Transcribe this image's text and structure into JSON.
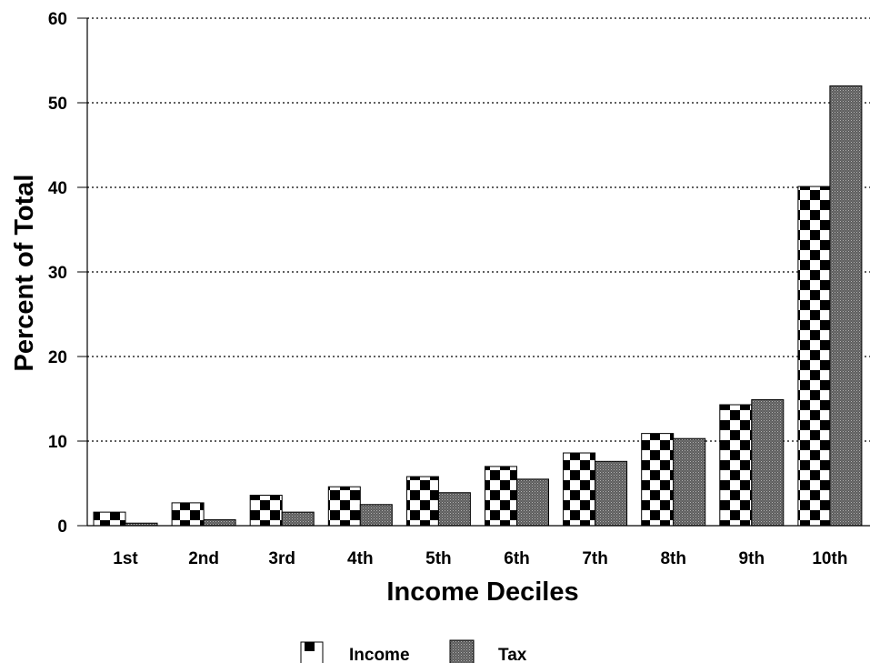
{
  "chart_data": {
    "type": "bar",
    "title": "",
    "xlabel": "Income Deciles",
    "ylabel": "Percent of Total",
    "categories": [
      "1st",
      "2nd",
      "3rd",
      "4th",
      "5th",
      "6th",
      "7th",
      "8th",
      "9th",
      "10th"
    ],
    "series": [
      {
        "name": "Income",
        "values": [
          1.6,
          2.7,
          3.6,
          4.6,
          5.8,
          7.0,
          8.6,
          10.9,
          14.3,
          40.1
        ],
        "pattern": "checkerboard"
      },
      {
        "name": "Tax",
        "values": [
          0.3,
          0.7,
          1.6,
          2.5,
          3.9,
          5.5,
          7.6,
          10.3,
          14.9,
          52.0
        ],
        "pattern": "fine-dark-grey"
      }
    ],
    "ylim": [
      0,
      60
    ],
    "yticks": [
      0,
      10,
      20,
      30,
      40,
      50,
      60
    ],
    "grid": "dotted horizontal lines at y ticks",
    "legend_position": "bottom-center",
    "colors": {
      "axis": "#000000",
      "tax_fill": "#6e6e6e"
    }
  }
}
